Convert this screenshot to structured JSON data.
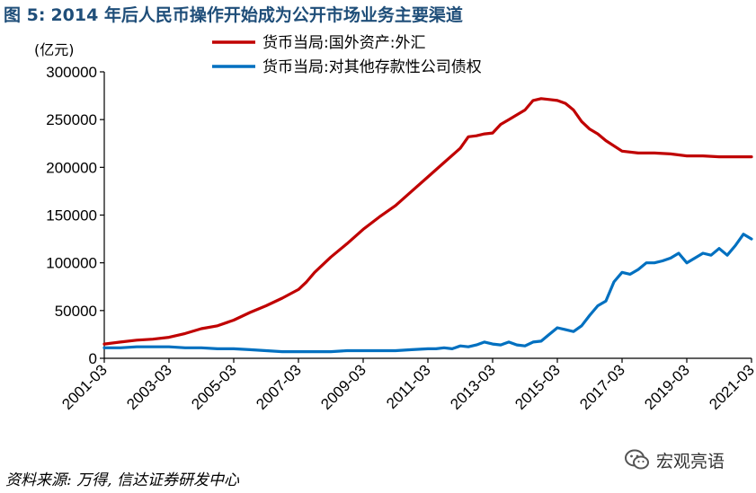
{
  "figure": {
    "label": "图 5:",
    "title": "2014 年后人民币操作开始成为公开市场业务主要渠道",
    "source": "资料来源: 万得, 信达证券研发中心",
    "watermark_text": "宏观亮语",
    "watermark_icon": "wechat-logo-icon"
  },
  "chart_data": {
    "type": "line",
    "ylabel": "(亿元)",
    "ylim": [
      0,
      300000
    ],
    "yticks": [
      0,
      50000,
      100000,
      150000,
      200000,
      250000,
      300000
    ],
    "xlim": [
      "2001-03",
      "2021-03"
    ],
    "xticks": [
      "2001-03",
      "2003-03",
      "2005-03",
      "2007-03",
      "2009-03",
      "2011-03",
      "2013-03",
      "2015-03",
      "2017-03",
      "2019-03",
      "2021-03"
    ],
    "legend_position": "top",
    "grid": false,
    "series": [
      {
        "name": "货币当局:国外资产:外汇",
        "color": "#c00000",
        "points": [
          [
            "2001-03",
            15000
          ],
          [
            "2001-09",
            17000
          ],
          [
            "2002-03",
            19000
          ],
          [
            "2002-09",
            20000
          ],
          [
            "2003-03",
            22000
          ],
          [
            "2003-09",
            26000
          ],
          [
            "2004-03",
            31000
          ],
          [
            "2004-09",
            34000
          ],
          [
            "2005-03",
            40000
          ],
          [
            "2005-09",
            48000
          ],
          [
            "2006-03",
            55000
          ],
          [
            "2006-09",
            63000
          ],
          [
            "2007-03",
            72000
          ],
          [
            "2007-06",
            80000
          ],
          [
            "2007-09",
            90000
          ],
          [
            "2008-03",
            106000
          ],
          [
            "2008-09",
            120000
          ],
          [
            "2009-03",
            135000
          ],
          [
            "2009-09",
            148000
          ],
          [
            "2010-03",
            160000
          ],
          [
            "2010-09",
            175000
          ],
          [
            "2011-03",
            190000
          ],
          [
            "2011-09",
            205000
          ],
          [
            "2012-03",
            220000
          ],
          [
            "2012-06",
            232000
          ],
          [
            "2012-09",
            233000
          ],
          [
            "2012-12",
            235000
          ],
          [
            "2013-03",
            236000
          ],
          [
            "2013-06",
            245000
          ],
          [
            "2013-09",
            250000
          ],
          [
            "2014-03",
            260000
          ],
          [
            "2014-06",
            270000
          ],
          [
            "2014-09",
            272000
          ],
          [
            "2014-12",
            271000
          ],
          [
            "2015-03",
            270000
          ],
          [
            "2015-06",
            267000
          ],
          [
            "2015-09",
            260000
          ],
          [
            "2015-12",
            248000
          ],
          [
            "2016-03",
            240000
          ],
          [
            "2016-06",
            235000
          ],
          [
            "2016-09",
            228000
          ],
          [
            "2017-03",
            217000
          ],
          [
            "2017-09",
            215000
          ],
          [
            "2018-03",
            215000
          ],
          [
            "2018-09",
            214000
          ],
          [
            "2019-03",
            212000
          ],
          [
            "2019-09",
            212000
          ],
          [
            "2020-03",
            211000
          ],
          [
            "2020-09",
            211000
          ],
          [
            "2021-03",
            211000
          ]
        ]
      },
      {
        "name": "货币当局:对其他存款性公司债权",
        "color": "#0070c0",
        "points": [
          [
            "2001-03",
            11000
          ],
          [
            "2001-09",
            11000
          ],
          [
            "2002-03",
            12000
          ],
          [
            "2002-09",
            12000
          ],
          [
            "2003-03",
            12000
          ],
          [
            "2003-09",
            11000
          ],
          [
            "2004-03",
            11000
          ],
          [
            "2004-09",
            10000
          ],
          [
            "2005-03",
            10000
          ],
          [
            "2005-09",
            9000
          ],
          [
            "2006-03",
            8000
          ],
          [
            "2006-09",
            7000
          ],
          [
            "2007-03",
            7000
          ],
          [
            "2007-09",
            7000
          ],
          [
            "2008-03",
            7000
          ],
          [
            "2008-09",
            8000
          ],
          [
            "2009-03",
            8000
          ],
          [
            "2009-09",
            8000
          ],
          [
            "2010-03",
            8000
          ],
          [
            "2010-09",
            9000
          ],
          [
            "2011-03",
            10000
          ],
          [
            "2011-06",
            10000
          ],
          [
            "2011-09",
            11000
          ],
          [
            "2011-12",
            10000
          ],
          [
            "2012-03",
            13000
          ],
          [
            "2012-06",
            12000
          ],
          [
            "2012-09",
            14000
          ],
          [
            "2012-12",
            17000
          ],
          [
            "2013-03",
            15000
          ],
          [
            "2013-06",
            14000
          ],
          [
            "2013-09",
            17000
          ],
          [
            "2013-12",
            14000
          ],
          [
            "2014-03",
            13000
          ],
          [
            "2014-06",
            17000
          ],
          [
            "2014-09",
            18000
          ],
          [
            "2014-12",
            25000
          ],
          [
            "2015-03",
            32000
          ],
          [
            "2015-06",
            30000
          ],
          [
            "2015-09",
            28000
          ],
          [
            "2015-12",
            34000
          ],
          [
            "2016-03",
            45000
          ],
          [
            "2016-06",
            55000
          ],
          [
            "2016-09",
            60000
          ],
          [
            "2016-12",
            80000
          ],
          [
            "2017-03",
            90000
          ],
          [
            "2017-06",
            88000
          ],
          [
            "2017-09",
            93000
          ],
          [
            "2017-12",
            100000
          ],
          [
            "2018-03",
            100000
          ],
          [
            "2018-06",
            102000
          ],
          [
            "2018-09",
            105000
          ],
          [
            "2018-12",
            110000
          ],
          [
            "2019-03",
            100000
          ],
          [
            "2019-06",
            105000
          ],
          [
            "2019-09",
            110000
          ],
          [
            "2019-12",
            108000
          ],
          [
            "2020-03",
            115000
          ],
          [
            "2020-06",
            108000
          ],
          [
            "2020-09",
            118000
          ],
          [
            "2020-12",
            130000
          ],
          [
            "2021-03",
            125000
          ]
        ]
      }
    ]
  }
}
